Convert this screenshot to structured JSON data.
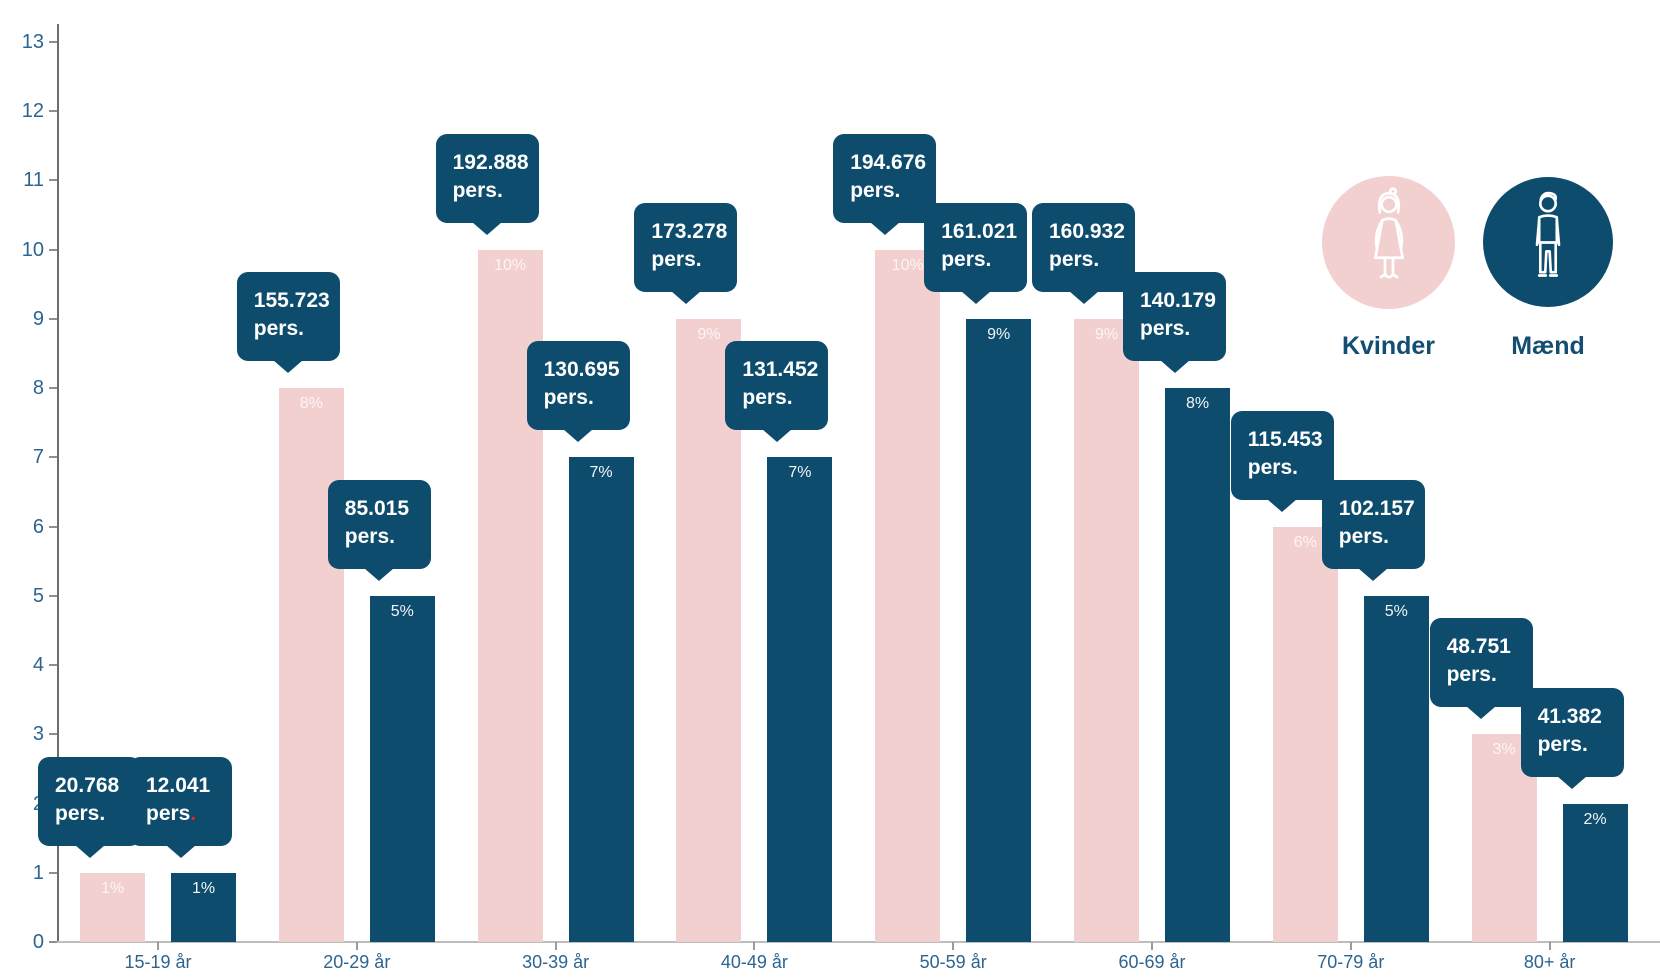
{
  "chart_data": {
    "type": "bar",
    "title": "",
    "categories": [
      "15-19 år",
      "20-29 år",
      "30-39 år",
      "40-49 år",
      "50-59 år",
      "60-69 år",
      "70-79 år",
      "80+ år"
    ],
    "series": [
      {
        "name": "Kvinder",
        "color": "#f2d0d0",
        "values": [
          1,
          8,
          10,
          9,
          10,
          9,
          6,
          3
        ],
        "percent_labels": [
          "1%",
          "8%",
          "10%",
          "9%",
          "10%",
          "9%",
          "6%",
          "3%"
        ],
        "person_labels": [
          "20.768",
          "155.723",
          "192.888",
          "173.278",
          "194.676",
          "160.932",
          "115.453",
          "48.751"
        ]
      },
      {
        "name": "Mænd",
        "color": "#0e4c6d",
        "values": [
          1,
          5,
          7,
          7,
          9,
          8,
          5,
          2
        ],
        "percent_labels": [
          "1%",
          "5%",
          "7%",
          "7%",
          "9%",
          "8%",
          "5%",
          "2%"
        ],
        "person_labels": [
          "12.041",
          "85.015",
          "130.695",
          "131.452",
          "161.021",
          "140.179",
          "102.157",
          "41.382"
        ],
        "red_period_index": 0
      }
    ],
    "unit_label": "pers.",
    "ylim": [
      0,
      13
    ],
    "y_ticks": [
      "0",
      "1",
      "2",
      "3",
      "4",
      "5",
      "6",
      "7",
      "8",
      "9",
      "10",
      "11",
      "12",
      "13"
    ],
    "grid": false,
    "legend_position": "top-right"
  },
  "legend": {
    "items": [
      {
        "label": "Kvinder",
        "icon": "woman-icon",
        "color": "#f2d0d0"
      },
      {
        "label": "Mænd",
        "icon": "man-icon",
        "color": "#0e4c6d"
      }
    ]
  },
  "colors": {
    "navy": "#0e4c6d",
    "pink": "#f2d0d0",
    "axis_label_blue": "#2d6590",
    "red_period": "#d7282f"
  }
}
